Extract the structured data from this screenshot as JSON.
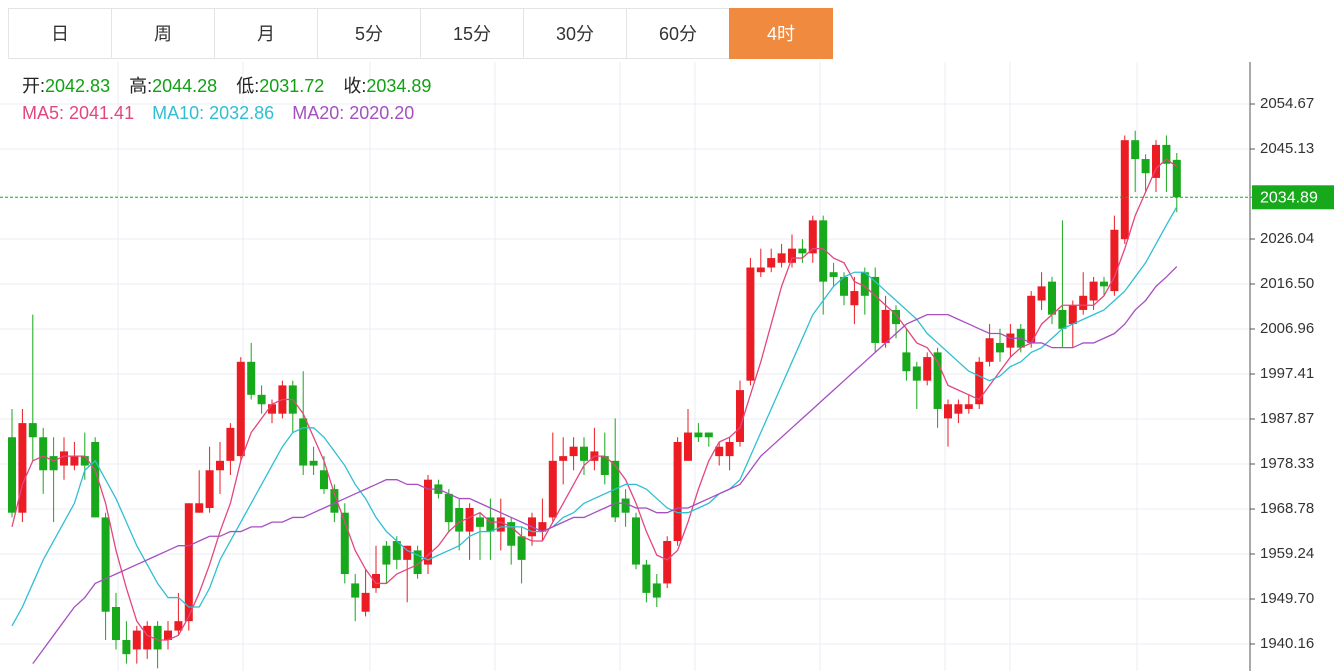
{
  "tabs": [
    "日",
    "周",
    "月",
    "5分",
    "15分",
    "30分",
    "60分",
    "4时"
  ],
  "active_tab": 7,
  "chart_data": {
    "type": "candlestick",
    "ohlc_labels": {
      "open": "开:",
      "high": "高:",
      "low": "低:",
      "close": "收:"
    },
    "up_color": "#eb1c24",
    "down_color": "#17a81b",
    "grid": true,
    "ylim": [
      1934.43,
      2063.58
    ],
    "yticks": [
      2054.67,
      2045.13,
      2026.04,
      {
        "value": 2016.5,
        "label": "2016.50"
      },
      2006.96,
      1997.41,
      1987.87,
      1978.33,
      1968.78,
      1959.24,
      {
        "value": 1949.7,
        "label": "1949.70"
      },
      1940.16
    ],
    "candles": {
      "open": [
        1984,
        1968,
        1987,
        1984,
        1980,
        1978,
        1978,
        1980,
        1983,
        1967,
        1948,
        1941,
        1939,
        1939,
        1944,
        1941,
        1943,
        1945,
        1968,
        1969,
        1977,
        1979,
        1980,
        2000,
        1993,
        1989,
        1989,
        1995,
        1988,
        1979,
        1977,
        1973,
        1968,
        1953,
        1947,
        1952,
        1961,
        1962,
        1958,
        1960,
        1957,
        1974,
        1972,
        1969,
        1964,
        1967,
        1967,
        1964,
        1966,
        1963,
        1963,
        1964,
        1967,
        1979,
        1980,
        1982,
        1979,
        1980,
        1979,
        1971,
        1967,
        1957,
        1953,
        1953,
        1962,
        1979,
        1985,
        1985,
        1980,
        1980,
        1983,
        1996,
        2019,
        2020,
        2021,
        2021,
        2024,
        2023,
        2030,
        2019,
        2018,
        2012,
        2019,
        2018,
        2004,
        2011,
        2002,
        1999,
        1996,
        2002,
        1988,
        1989,
        1990,
        1991,
        2000,
        2004,
        2003,
        2007,
        2004,
        2013,
        2017,
        2011,
        2008,
        2011,
        2013,
        2017,
        2015,
        2026,
        2047,
        2043,
        2039,
        2046,
        2042.83
      ],
      "high": [
        1990,
        1990,
        2010,
        1986,
        1984,
        1984,
        1983,
        1985,
        1984,
        1968,
        1951,
        1945,
        1944,
        1945,
        1945,
        1945,
        1951,
        1970,
        1977,
        1982,
        1983,
        1987,
        2001,
        2004,
        1995,
        1992,
        1996,
        1996,
        1998,
        1982,
        1980,
        1974,
        1970,
        1955,
        1956,
        1961,
        1962,
        1963,
        1961,
        1961,
        1976,
        1975,
        1973,
        1971,
        1970,
        1968,
        1971,
        1971,
        1967,
        1965,
        1968,
        1971,
        1985,
        1984,
        1984,
        1984,
        1986,
        1985,
        1988,
        1973,
        1968,
        1958,
        1955,
        1963,
        1984,
        1990,
        1987,
        1985,
        1983,
        1984,
        1996,
        2022,
        2024,
        2024,
        2025,
        2027,
        2026,
        2031,
        2031,
        2021,
        2019,
        2018,
        2020,
        2020,
        2014,
        2012,
        2007,
        2000,
        2002,
        2003,
        1992,
        1992,
        1993,
        2001,
        2008,
        2007,
        2008,
        2008,
        2015,
        2019,
        2018,
        2030,
        2013,
        2019,
        2018,
        2018,
        2031,
        2048,
        2049,
        2044,
        2047,
        2048,
        2044.28
      ],
      "low": [
        1967,
        1966,
        1979,
        1972,
        1966,
        1975,
        1977,
        1975,
        1967,
        1941,
        1939,
        1936,
        1936,
        1937,
        1935,
        1939,
        1942,
        1943,
        1968,
        1968,
        1972,
        1976,
        1979,
        1992,
        1989,
        1987,
        1988,
        1985,
        1976,
        1976,
        1972,
        1966,
        1953,
        1945,
        1946,
        1951,
        1953,
        1956,
        1949,
        1954,
        1955,
        1971,
        1964,
        1960,
        1958,
        1958,
        1958,
        1960,
        1957,
        1953,
        1961,
        1962,
        1966,
        1974,
        1977,
        1976,
        1977,
        1974,
        1966,
        1965,
        1956,
        1949,
        1948,
        1952,
        1961,
        1979,
        1983,
        1982,
        1978,
        1977,
        1982,
        1995,
        2018,
        2019,
        2020,
        2020,
        2021,
        2021,
        2010,
        2016,
        2012,
        2008,
        2010,
        2002,
        2003,
        2005,
        1996,
        1990,
        1995,
        1986,
        1982,
        1987,
        1989,
        1990,
        1999,
        2000,
        2001,
        2002,
        2003,
        2011,
        2008,
        2003,
        2003,
        2010,
        2011,
        2014,
        2014,
        2025,
        2036,
        2036,
        2036,
        2036,
        2031.72
      ],
      "close": [
        1968,
        1987,
        1984,
        1977,
        1977,
        1981,
        1980,
        1978,
        1967,
        1947,
        1941,
        1938,
        1943,
        1944,
        1939,
        1943,
        1945,
        1970,
        1970,
        1977,
        1979,
        1986,
        2000,
        1993,
        1991,
        1991,
        1995,
        1989,
        1978,
        1978,
        1973,
        1968,
        1955,
        1950,
        1951,
        1955,
        1957,
        1958,
        1961,
        1955,
        1975,
        1972,
        1966,
        1964,
        1969,
        1965,
        1964,
        1967,
        1961,
        1958,
        1967,
        1966,
        1979,
        1980,
        1982,
        1979,
        1981,
        1976,
        1967,
        1968,
        1957,
        1951,
        1950,
        1962,
        1983,
        1985,
        1984,
        1984,
        1982,
        1983,
        1994,
        2020,
        2020,
        2022,
        2023,
        2024,
        2023,
        2030,
        2017,
        2018,
        2014,
        2015,
        2014,
        2004,
        2011,
        2008,
        1998,
        1996,
        2001,
        1990,
        1991,
        1991,
        1991,
        2000,
        2005,
        2002,
        2006,
        2003,
        2014,
        2016,
        2010,
        2007,
        2012,
        2014,
        2017,
        2016,
        2028,
        2047,
        2043,
        2040,
        2046,
        2042,
        2034.89
      ]
    },
    "ma_series": [
      {
        "name": "MA5:",
        "color": "#e3467f",
        "values": [
          1965,
          1974,
          1979,
          1980,
          1979,
          1980,
          1980,
          1980,
          1977,
          1970,
          1960,
          1952,
          1945,
          1942,
          1941,
          1941,
          1942,
          1946,
          1951,
          1957,
          1964,
          1970,
          1979,
          1985,
          1988,
          1991,
          1992,
          1992,
          1989,
          1984,
          1979,
          1972,
          1966,
          1960,
          1956,
          1953,
          1953,
          1955,
          1956,
          1957,
          1959,
          1961,
          1964,
          1966,
          1967,
          1968,
          1966,
          1966,
          1965,
          1963,
          1962,
          1962,
          1966,
          1970,
          1974,
          1978,
          1980,
          1980,
          1978,
          1975,
          1970,
          1964,
          1959,
          1958,
          1960,
          1966,
          1973,
          1979,
          1983,
          1984,
          1986,
          1993,
          2000,
          2008,
          2016,
          2022,
          2022,
          2024,
          2024,
          2022,
          2021,
          2017,
          2016,
          2014,
          2012,
          2010,
          2007,
          2004,
          2003,
          2000,
          1995,
          1994,
          1993,
          1992,
          1995,
          1998,
          2001,
          2003,
          2004,
          2008,
          2010,
          2012,
          2012,
          2012,
          2012,
          2014,
          2018,
          2024,
          2031,
          2036,
          2041,
          2043,
          2041.41
        ]
      },
      {
        "name": "MA10:",
        "color": "#2fbfd2",
        "values": [
          1944,
          1948,
          1953,
          1958,
          1962,
          1966,
          1970,
          1977,
          1979,
          1975,
          1971,
          1966,
          1961,
          1957,
          1953,
          1950,
          1950,
          1948,
          1948,
          1952,
          1958,
          1962,
          1966,
          1970,
          1974,
          1978,
          1982,
          1985,
          1986,
          1986,
          1984,
          1981,
          1978,
          1974,
          1971,
          1967,
          1964,
          1962,
          1960,
          1959,
          1958,
          1959,
          1960,
          1961,
          1963,
          1964,
          1964,
          1965,
          1965,
          1965,
          1964,
          1964,
          1965,
          1967,
          1968,
          1970,
          1971,
          1972,
          1973,
          1974,
          1974,
          1973,
          1971,
          1969,
          1968,
          1968,
          1969,
          1970,
          1972,
          1973,
          1975,
          1980,
          1985,
          1990,
          1995,
          2000,
          2005,
          2010,
          2013,
          2016,
          2018,
          2019,
          2019,
          2017,
          2015,
          2013,
          2011,
          2009,
          2006,
          2004,
          2002,
          2000,
          1998,
          1997,
          1996,
          1997,
          1999,
          2000,
          2002,
          2003,
          2005,
          2007,
          2008,
          2009,
          2010,
          2011,
          2013,
          2015,
          2018,
          2021,
          2025,
          2029,
          2032.86
        ]
      },
      {
        "name": "MA20:",
        "color": "#a64fc1",
        "value_label": "2020.20",
        "values": [
          null,
          null,
          1936,
          1939,
          1942,
          1945,
          1948,
          1950,
          1953,
          1954,
          1955,
          1956,
          1957,
          1958,
          1959,
          1960,
          1961,
          1961,
          1962,
          1963,
          1963,
          1964,
          1964,
          1965,
          1965,
          1966,
          1966,
          1967,
          1967,
          1968,
          1969,
          1970,
          1971,
          1972,
          1973,
          1974,
          1975,
          1975,
          1974,
          1974,
          1973,
          1973,
          1972,
          1971,
          1971,
          1970,
          1969,
          1968,
          1967,
          1966,
          1965,
          1964,
          1965,
          1966,
          1967,
          1967,
          1968,
          1969,
          1970,
          1970,
          1969,
          1969,
          1968,
          1968,
          1969,
          1969,
          1970,
          1971,
          1972,
          1973,
          1974,
          1977,
          1980,
          1982,
          1984,
          1986,
          1988,
          1990,
          1992,
          1994,
          1996,
          1998,
          2000,
          2002,
          2004,
          2006,
          2008,
          2009,
          2010,
          2010,
          2010,
          2009,
          2008,
          2007,
          2006,
          2006,
          2005,
          2005,
          2004,
          2004,
          2003,
          2003,
          2003,
          2004,
          2004,
          2005,
          2006,
          2008,
          2011,
          2013,
          2016,
          2018,
          2020.2
        ]
      }
    ]
  }
}
